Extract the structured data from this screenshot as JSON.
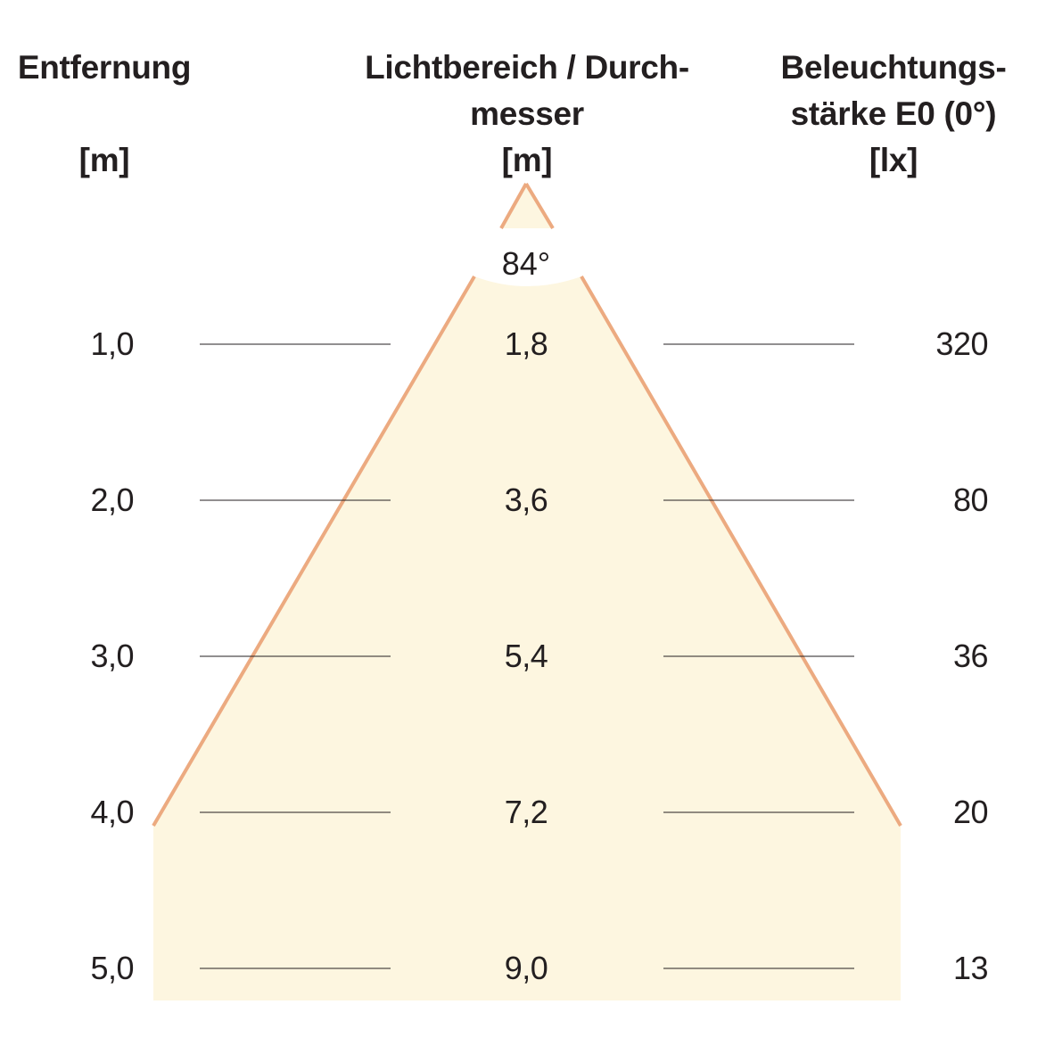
{
  "headers": {
    "distance": {
      "title": "Entfernung",
      "unit": "[m]"
    },
    "diameter": {
      "title_line1": "Lichtbereich / Durch-",
      "title_line2": "messer",
      "unit": "[m]"
    },
    "illuminance": {
      "title_line1": "Beleuchtungs-",
      "title_line2": "stärke E0 (0°)",
      "unit": "[lx]"
    }
  },
  "beam_angle": "84°",
  "rows": [
    {
      "distance": "1,0",
      "diameter": "1,8",
      "illuminance": "320"
    },
    {
      "distance": "2,0",
      "diameter": "3,6",
      "illuminance": "80"
    },
    {
      "distance": "3,0",
      "diameter": "5,4",
      "illuminance": "36"
    },
    {
      "distance": "4,0",
      "diameter": "7,2",
      "illuminance": "20"
    },
    {
      "distance": "5,0",
      "diameter": "9,0",
      "illuminance": "13"
    }
  ],
  "colors": {
    "beam_fill": "#fdf6e0",
    "beam_edge": "#ecaa80",
    "text": "#231f20",
    "rule_line": "#231f20"
  }
}
